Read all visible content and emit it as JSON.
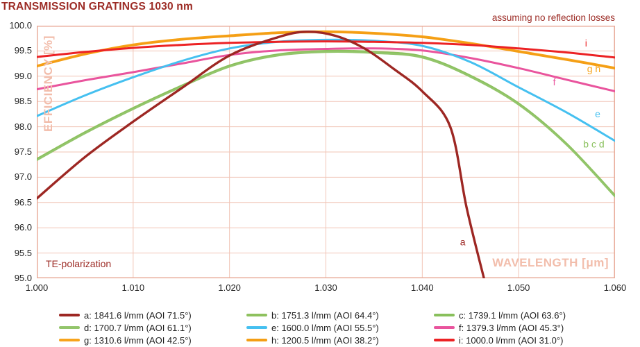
{
  "page": {
    "title": "TRANSMISSION GRATINGS 1030 nm"
  },
  "annotations": {
    "assumption": "assuming no reflection losses",
    "polarization": "TE-polarization"
  },
  "axes": {
    "x": {
      "label": "WAVELENGTH [μm]",
      "ticks": [
        "1.000",
        "1.010",
        "1.020",
        "1.030",
        "1.040",
        "1.050",
        "1.060"
      ],
      "tick_values": [
        1.0,
        1.01,
        1.02,
        1.03,
        1.04,
        1.05,
        1.06
      ]
    },
    "y": {
      "label": "EFFICIENCY [%]",
      "ticks": [
        "100.0",
        "99.5",
        "99.0",
        "98.5",
        "98.0",
        "97.5",
        "97.0",
        "96.5",
        "96.0",
        "95.5",
        "95.0"
      ],
      "tick_values": [
        100.0,
        99.5,
        99.0,
        98.5,
        98.0,
        97.5,
        97.0,
        96.5,
        96.0,
        95.5,
        95.0
      ]
    }
  },
  "colors": {
    "heading_dark_red": "#9C2B25",
    "grid": "#F1C4B6",
    "plot_border": "#E9AE9C",
    "axis_label_salmon": "#F2BDAB",
    "tick_text": "#1F1F1F",
    "background": "#FFFFFF"
  },
  "chart_data": {
    "type": "line",
    "title": "TRANSMISSION GRATINGS 1030 nm",
    "xlabel": "WAVELENGTH [μm]",
    "ylabel": "EFFICIENCY [%]",
    "xlim": [
      1.0,
      1.06
    ],
    "ylim": [
      95.0,
      100.0
    ],
    "grid": true,
    "legend_position": "bottom",
    "series": [
      {
        "id": "a",
        "label": "a: 1841.6 l/mm (AOI 71.5°)",
        "lines_per_mm": 1841.6,
        "aoi_deg": 71.5,
        "color": "#9D2723",
        "x": [
          1.0,
          1.005,
          1.01,
          1.015,
          1.02,
          1.025,
          1.028,
          1.031,
          1.034,
          1.037,
          1.04,
          1.0429,
          1.0446,
          1.0464
        ],
        "y": [
          96.58,
          97.4,
          98.1,
          98.76,
          99.41,
          99.77,
          99.88,
          99.8,
          99.55,
          99.15,
          98.7,
          98.0,
          96.4,
          95.0
        ]
      },
      {
        "id": "b",
        "label": "b: 1751.3 l/mm (AOI 64.4°)",
        "lines_per_mm": 1751.3,
        "aoi_deg": 64.4,
        "color": "#8EC15E",
        "x": [
          1.0,
          1.005,
          1.01,
          1.015,
          1.02,
          1.025,
          1.03,
          1.035,
          1.04,
          1.045,
          1.05,
          1.055,
          1.06
        ],
        "y": [
          97.35,
          97.88,
          98.36,
          98.8,
          99.2,
          99.42,
          99.49,
          99.47,
          99.38,
          99.0,
          98.45,
          97.65,
          96.63
        ]
      },
      {
        "id": "c",
        "label": "c: 1739.1 l/mm (AOI 63.6°)",
        "lines_per_mm": 1739.1,
        "aoi_deg": 63.6,
        "color": "#89C05C",
        "x": [
          1.0,
          1.005,
          1.01,
          1.015,
          1.02,
          1.025,
          1.03,
          1.035,
          1.04,
          1.045,
          1.05,
          1.055,
          1.06
        ],
        "y": [
          97.35,
          97.88,
          98.36,
          98.8,
          99.2,
          99.42,
          99.49,
          99.47,
          99.38,
          99.0,
          98.45,
          97.65,
          96.63
        ]
      },
      {
        "id": "d",
        "label": "d: 1700.7 l/mm (AOI 61.1°)",
        "lines_per_mm": 1700.7,
        "aoi_deg": 61.1,
        "color": "#93C56B",
        "x": [
          1.0,
          1.005,
          1.01,
          1.015,
          1.02,
          1.025,
          1.03,
          1.035,
          1.04,
          1.045,
          1.05,
          1.055,
          1.06
        ],
        "y": [
          97.35,
          97.88,
          98.36,
          98.8,
          99.2,
          99.42,
          99.49,
          99.47,
          99.38,
          99.0,
          98.45,
          97.65,
          96.63
        ]
      },
      {
        "id": "e",
        "label": "e: 1600.0 l/mm (AOI 55.5°)",
        "lines_per_mm": 1600.0,
        "aoi_deg": 55.5,
        "color": "#45C0F0",
        "x": [
          1.0,
          1.005,
          1.01,
          1.015,
          1.02,
          1.025,
          1.03,
          1.035,
          1.04,
          1.045,
          1.05,
          1.055,
          1.06
        ],
        "y": [
          98.21,
          98.62,
          98.98,
          99.3,
          99.55,
          99.68,
          99.72,
          99.7,
          99.6,
          99.28,
          98.78,
          98.28,
          97.72
        ]
      },
      {
        "id": "f",
        "label": "f: 1379.3 l/mm (AOI 45.3°)",
        "lines_per_mm": 1379.3,
        "aoi_deg": 45.3,
        "color": "#E9549D",
        "x": [
          1.0,
          1.005,
          1.01,
          1.015,
          1.02,
          1.025,
          1.03,
          1.035,
          1.04,
          1.045,
          1.05,
          1.055,
          1.06
        ],
        "y": [
          98.74,
          98.92,
          99.08,
          99.25,
          99.42,
          99.51,
          99.54,
          99.55,
          99.51,
          99.36,
          99.16,
          98.93,
          98.7
        ]
      },
      {
        "id": "g",
        "label": "g: 1310.6 l/mm (AOI 42.5°)",
        "lines_per_mm": 1310.6,
        "aoi_deg": 42.5,
        "color": "#F7A41C",
        "x": [
          1.0,
          1.005,
          1.01,
          1.015,
          1.02,
          1.025,
          1.03,
          1.035,
          1.04,
          1.045,
          1.05,
          1.055,
          1.06
        ],
        "y": [
          99.2,
          99.44,
          99.62,
          99.73,
          99.8,
          99.86,
          99.88,
          99.85,
          99.78,
          99.65,
          99.49,
          99.33,
          99.16
        ]
      },
      {
        "id": "h",
        "label": "h: 1200.5 l/mm (AOI 38.2°)",
        "lines_per_mm": 1200.5,
        "aoi_deg": 38.2,
        "color": "#F49E14",
        "x": [
          1.0,
          1.005,
          1.01,
          1.015,
          1.02,
          1.025,
          1.03,
          1.035,
          1.04,
          1.045,
          1.05,
          1.055,
          1.06
        ],
        "y": [
          99.2,
          99.44,
          99.62,
          99.73,
          99.8,
          99.86,
          99.88,
          99.85,
          99.78,
          99.65,
          99.49,
          99.33,
          99.16
        ]
      },
      {
        "id": "i",
        "label": "i: 1000.0 l/mm (AOI 31.0°)",
        "lines_per_mm": 1000.0,
        "aoi_deg": 31.0,
        "color": "#EC2224",
        "x": [
          1.0,
          1.005,
          1.01,
          1.015,
          1.02,
          1.025,
          1.03,
          1.035,
          1.04,
          1.045,
          1.05,
          1.055,
          1.06
        ],
        "y": [
          99.38,
          99.48,
          99.56,
          99.62,
          99.66,
          99.68,
          99.69,
          99.68,
          99.66,
          99.62,
          99.55,
          99.47,
          99.37
        ]
      }
    ],
    "point_labels": [
      {
        "text": "a",
        "x": 1.0442,
        "y": 95.7,
        "series": "a"
      },
      {
        "text": "b c d",
        "x": 1.0578,
        "y": 97.64,
        "series": "c"
      },
      {
        "text": "e",
        "x": 1.0582,
        "y": 98.24,
        "series": "e"
      },
      {
        "text": "f",
        "x": 1.0537,
        "y": 98.87,
        "series": "f"
      },
      {
        "text": "g h",
        "x": 1.0578,
        "y": 99.13,
        "series": "g"
      },
      {
        "text": "i",
        "x": 1.057,
        "y": 99.64,
        "series": "i"
      }
    ],
    "draw_order": [
      "f",
      "b",
      "c",
      "d",
      "e",
      "g",
      "h",
      "i",
      "a"
    ]
  }
}
